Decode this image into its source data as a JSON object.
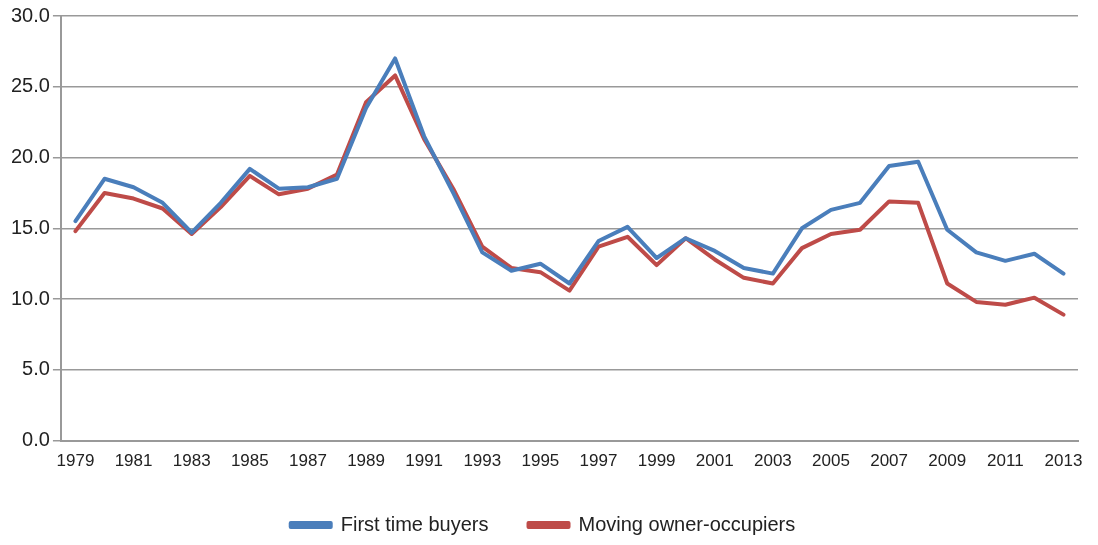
{
  "chart_data": {
    "type": "line",
    "categories": [
      "1979",
      null,
      "1981",
      null,
      "1983",
      null,
      "1985",
      null,
      "1987",
      null,
      "1989",
      null,
      "1991",
      null,
      "1993",
      null,
      "1995",
      null,
      "1997",
      null,
      "1999",
      null,
      "2001",
      null,
      "2003",
      null,
      "2005",
      null,
      "2007",
      null,
      "2009",
      null,
      "2011",
      null,
      "2013"
    ],
    "series": [
      {
        "name": "First time buyers",
        "color": "#4a7ebb",
        "values": [
          15.5,
          18.5,
          17.9,
          16.8,
          14.7,
          16.8,
          19.2,
          17.8,
          17.9,
          18.5,
          23.5,
          27.0,
          21.5,
          17.5,
          13.3,
          12.0,
          12.5,
          11.1,
          14.1,
          15.1,
          12.9,
          14.3,
          13.4,
          12.2,
          11.8,
          15.0,
          16.3,
          16.8,
          19.4,
          19.7,
          14.9,
          13.3,
          12.7,
          13.2,
          11.8
        ]
      },
      {
        "name": "Moving owner-occupiers",
        "color": "#be4b48",
        "values": [
          14.8,
          17.5,
          17.1,
          16.4,
          14.6,
          16.5,
          18.7,
          17.4,
          17.8,
          18.8,
          23.9,
          25.8,
          21.3,
          17.8,
          13.7,
          12.2,
          11.9,
          10.6,
          13.7,
          14.4,
          12.4,
          14.3,
          12.8,
          11.5,
          11.1,
          13.6,
          14.6,
          14.9,
          16.9,
          16.8,
          11.1,
          9.8,
          9.6,
          10.1,
          8.9
        ]
      }
    ],
    "ylim": [
      0,
      30
    ],
    "yticks": [
      {
        "value": 0,
        "label": "0.0"
      },
      {
        "value": 5,
        "label": "5.0"
      },
      {
        "value": 10,
        "label": "10.0"
      },
      {
        "value": 15,
        "label": "15.0"
      },
      {
        "value": 20,
        "label": "20.0"
      },
      {
        "value": 25,
        "label": "25.0"
      },
      {
        "value": 30,
        "label": "30.0"
      }
    ],
    "grid": "y",
    "legend": "bottom",
    "marker": "none",
    "line_style": "solid"
  }
}
